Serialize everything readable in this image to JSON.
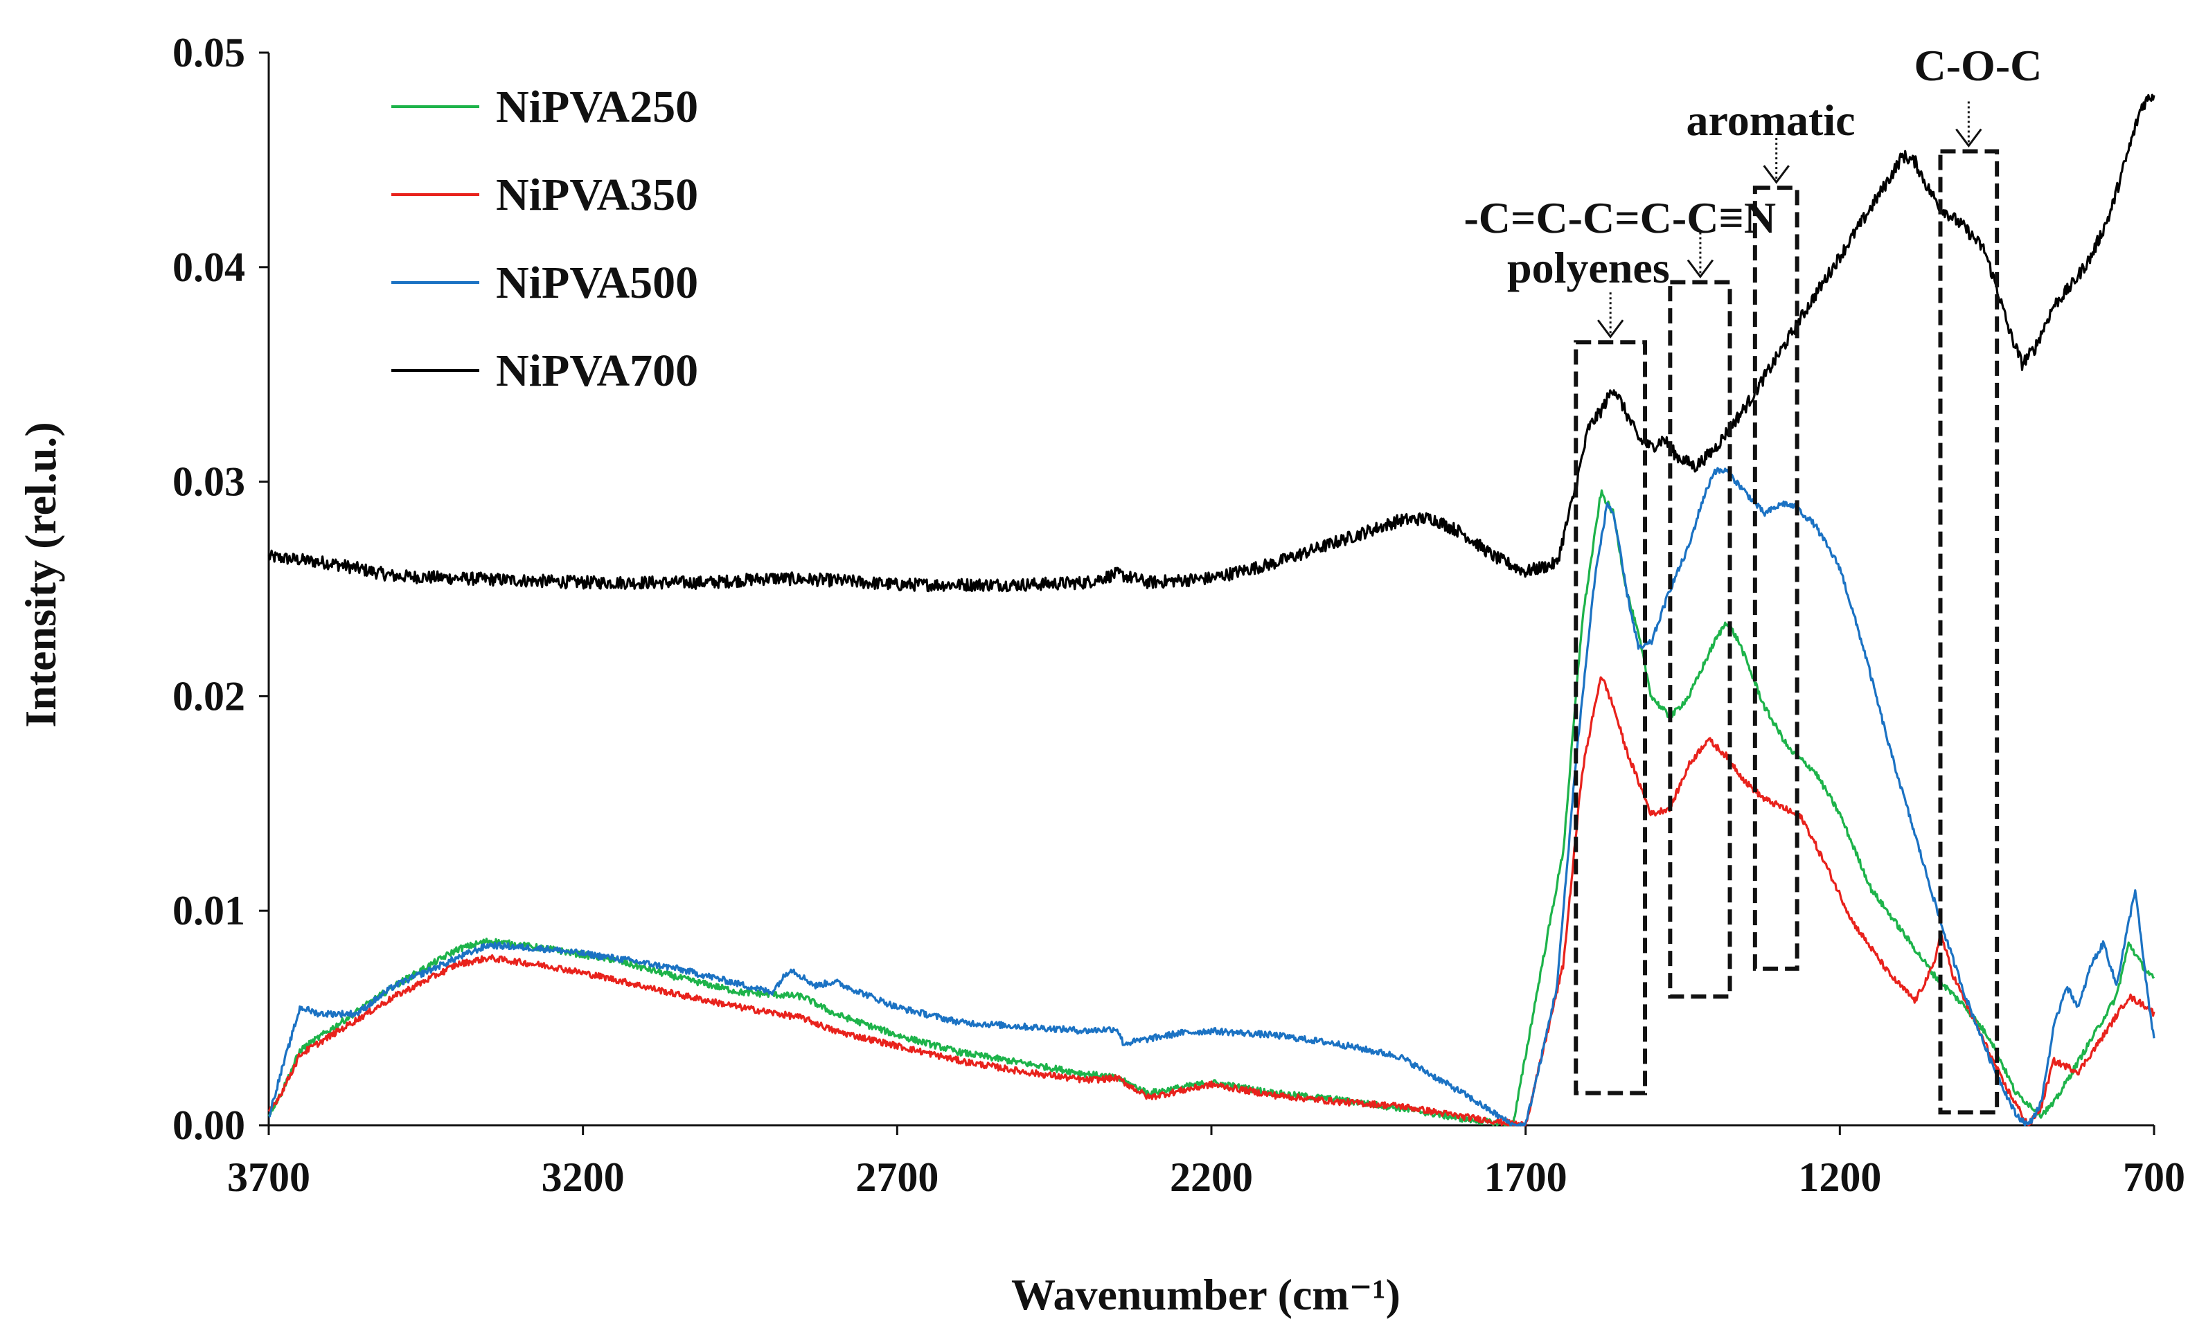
{
  "chart_data": {
    "type": "line",
    "title": "",
    "xlabel": "Wavenumber (cm⁻¹)",
    "ylabel": "Intensity (rel.u.)",
    "xlim": [
      3700,
      700
    ],
    "ylim": [
      0,
      0.05
    ],
    "x_ticks": [
      "3700",
      "3200",
      "2700",
      "2200",
      "1700",
      "1200",
      "700"
    ],
    "x_tick_values": [
      3700,
      3200,
      2700,
      2200,
      1700,
      1200,
      700
    ],
    "y_ticks": [
      "0.00",
      "0.01",
      "0.02",
      "0.03",
      "0.04",
      "0.05"
    ],
    "y_tick_values": [
      0,
      0.01,
      0.02,
      0.03,
      0.04,
      0.05
    ],
    "grid": false,
    "legend_position": "top-left",
    "series": [
      {
        "name": "NiPVA250",
        "color": "#1db34a",
        "noise": 0.00015,
        "points": [
          [
            3700,
            0.0005
          ],
          [
            3680,
            0.0015
          ],
          [
            3650,
            0.0035
          ],
          [
            3600,
            0.0045
          ],
          [
            3500,
            0.0065
          ],
          [
            3400,
            0.0082
          ],
          [
            3350,
            0.0086
          ],
          [
            3250,
            0.0082
          ],
          [
            3150,
            0.0077
          ],
          [
            3050,
            0.0069
          ],
          [
            2950,
            0.0062
          ],
          [
            2850,
            0.006
          ],
          [
            2800,
            0.0052
          ],
          [
            2700,
            0.0042
          ],
          [
            2600,
            0.0034
          ],
          [
            2500,
            0.0029
          ],
          [
            2400,
            0.0024
          ],
          [
            2350,
            0.0022
          ],
          [
            2300,
            0.0015
          ],
          [
            2200,
            0.002
          ],
          [
            2100,
            0.0015
          ],
          [
            2000,
            0.0012
          ],
          [
            1900,
            0.0008
          ],
          [
            1800,
            0.0003
          ],
          [
            1720,
            0.0
          ],
          [
            1680,
            0.0065
          ],
          [
            1640,
            0.0128
          ],
          [
            1610,
            0.0235
          ],
          [
            1580,
            0.0295
          ],
          [
            1560,
            0.0285
          ],
          [
            1540,
            0.025
          ],
          [
            1520,
            0.0228
          ],
          [
            1500,
            0.02
          ],
          [
            1470,
            0.019
          ],
          [
            1440,
            0.02
          ],
          [
            1400,
            0.0225
          ],
          [
            1380,
            0.0235
          ],
          [
            1360,
            0.0225
          ],
          [
            1320,
            0.0195
          ],
          [
            1280,
            0.0175
          ],
          [
            1240,
            0.0165
          ],
          [
            1200,
            0.0145
          ],
          [
            1150,
            0.011
          ],
          [
            1100,
            0.009
          ],
          [
            1050,
            0.007
          ],
          [
            1000,
            0.0055
          ],
          [
            960,
            0.004
          ],
          [
            920,
            0.0015
          ],
          [
            880,
            0.0005
          ],
          [
            860,
            0.001
          ],
          [
            820,
            0.003
          ],
          [
            780,
            0.005
          ],
          [
            760,
            0.006
          ],
          [
            740,
            0.0085
          ],
          [
            720,
            0.0075
          ],
          [
            700,
            0.0068
          ]
        ]
      },
      {
        "name": "NiPVA350",
        "color": "#e8221c",
        "noise": 0.00015,
        "points": [
          [
            3700,
            0.0006
          ],
          [
            3680,
            0.0015
          ],
          [
            3650,
            0.0033
          ],
          [
            3600,
            0.0042
          ],
          [
            3500,
            0.006
          ],
          [
            3400,
            0.0075
          ],
          [
            3350,
            0.0078
          ],
          [
            3250,
            0.0074
          ],
          [
            3150,
            0.0068
          ],
          [
            3050,
            0.0061
          ],
          [
            2950,
            0.0055
          ],
          [
            2850,
            0.005
          ],
          [
            2800,
            0.0044
          ],
          [
            2700,
            0.0037
          ],
          [
            2600,
            0.003
          ],
          [
            2500,
            0.0025
          ],
          [
            2400,
            0.0021
          ],
          [
            2350,
            0.0022
          ],
          [
            2300,
            0.0013
          ],
          [
            2200,
            0.0019
          ],
          [
            2100,
            0.0014
          ],
          [
            2000,
            0.0011
          ],
          [
            1900,
            0.0009
          ],
          [
            1800,
            0.0004
          ],
          [
            1700,
            0.0
          ],
          [
            1680,
            0.0025
          ],
          [
            1640,
            0.0075
          ],
          [
            1610,
            0.0165
          ],
          [
            1580,
            0.021
          ],
          [
            1560,
            0.0195
          ],
          [
            1540,
            0.0175
          ],
          [
            1520,
            0.016
          ],
          [
            1500,
            0.0145
          ],
          [
            1470,
            0.0148
          ],
          [
            1440,
            0.0168
          ],
          [
            1410,
            0.018
          ],
          [
            1380,
            0.0172
          ],
          [
            1350,
            0.016
          ],
          [
            1320,
            0.0152
          ],
          [
            1290,
            0.0148
          ],
          [
            1260,
            0.0143
          ],
          [
            1220,
            0.012
          ],
          [
            1180,
            0.0095
          ],
          [
            1120,
            0.007
          ],
          [
            1080,
            0.0058
          ],
          [
            1050,
            0.0075
          ],
          [
            1040,
            0.009
          ],
          [
            1020,
            0.007
          ],
          [
            980,
            0.0045
          ],
          [
            940,
            0.002
          ],
          [
            900,
            0.0
          ],
          [
            880,
            0.0008
          ],
          [
            860,
            0.003
          ],
          [
            820,
            0.0025
          ],
          [
            780,
            0.0042
          ],
          [
            740,
            0.006
          ],
          [
            710,
            0.0055
          ],
          [
            700,
            0.0052
          ]
        ]
      },
      {
        "name": "NiPVA500",
        "color": "#1b72c3",
        "noise": 0.00015,
        "points": [
          [
            3700,
            0.0004
          ],
          [
            3680,
            0.0025
          ],
          [
            3650,
            0.0055
          ],
          [
            3620,
            0.0052
          ],
          [
            3560,
            0.0052
          ],
          [
            3500,
            0.0065
          ],
          [
            3400,
            0.0078
          ],
          [
            3350,
            0.0084
          ],
          [
            3250,
            0.0082
          ],
          [
            3150,
            0.0078
          ],
          [
            3050,
            0.0073
          ],
          [
            2980,
            0.0068
          ],
          [
            2900,
            0.0062
          ],
          [
            2870,
            0.0073
          ],
          [
            2830,
            0.0065
          ],
          [
            2800,
            0.0067
          ],
          [
            2700,
            0.0055
          ],
          [
            2600,
            0.0048
          ],
          [
            2500,
            0.0046
          ],
          [
            2400,
            0.0044
          ],
          [
            2350,
            0.0045
          ],
          [
            2340,
            0.0038
          ],
          [
            2250,
            0.0043
          ],
          [
            2200,
            0.0044
          ],
          [
            2100,
            0.0042
          ],
          [
            2000,
            0.0038
          ],
          [
            1900,
            0.0032
          ],
          [
            1800,
            0.0015
          ],
          [
            1720,
            0.0
          ],
          [
            1700,
            0.0
          ],
          [
            1680,
            0.0025
          ],
          [
            1650,
            0.0065
          ],
          [
            1620,
            0.017
          ],
          [
            1590,
            0.0255
          ],
          [
            1570,
            0.029
          ],
          [
            1560,
            0.0285
          ],
          [
            1540,
            0.025
          ],
          [
            1520,
            0.0222
          ],
          [
            1500,
            0.0225
          ],
          [
            1470,
            0.025
          ],
          [
            1440,
            0.027
          ],
          [
            1420,
            0.029
          ],
          [
            1400,
            0.0305
          ],
          [
            1380,
            0.0305
          ],
          [
            1350,
            0.0295
          ],
          [
            1320,
            0.0285
          ],
          [
            1290,
            0.029
          ],
          [
            1270,
            0.0288
          ],
          [
            1240,
            0.028
          ],
          [
            1200,
            0.026
          ],
          [
            1160,
            0.022
          ],
          [
            1120,
            0.0175
          ],
          [
            1080,
            0.0135
          ],
          [
            1040,
            0.0095
          ],
          [
            1000,
            0.006
          ],
          [
            960,
            0.003
          ],
          [
            920,
            0.0005
          ],
          [
            900,
            0.0
          ],
          [
            880,
            0.001
          ],
          [
            860,
            0.0045
          ],
          [
            840,
            0.0065
          ],
          [
            820,
            0.0055
          ],
          [
            800,
            0.0075
          ],
          [
            780,
            0.0085
          ],
          [
            760,
            0.0065
          ],
          [
            740,
            0.0095
          ],
          [
            730,
            0.011
          ],
          [
            710,
            0.006
          ],
          [
            700,
            0.004
          ]
        ]
      },
      {
        "name": "NiPVA700",
        "color": "#000000",
        "noise": 0.0003,
        "points": [
          [
            3700,
            0.0265
          ],
          [
            3600,
            0.0262
          ],
          [
            3500,
            0.0256
          ],
          [
            3400,
            0.0255
          ],
          [
            3300,
            0.0254
          ],
          [
            3200,
            0.0253
          ],
          [
            3100,
            0.0253
          ],
          [
            3000,
            0.0253
          ],
          [
            2900,
            0.0255
          ],
          [
            2800,
            0.0254
          ],
          [
            2700,
            0.0252
          ],
          [
            2600,
            0.0252
          ],
          [
            2500,
            0.0252
          ],
          [
            2400,
            0.0253
          ],
          [
            2350,
            0.0257
          ],
          [
            2300,
            0.0253
          ],
          [
            2200,
            0.0255
          ],
          [
            2100,
            0.0262
          ],
          [
            2000,
            0.0272
          ],
          [
            1900,
            0.0282
          ],
          [
            1850,
            0.0283
          ],
          [
            1800,
            0.0276
          ],
          [
            1750,
            0.0265
          ],
          [
            1700,
            0.0258
          ],
          [
            1650,
            0.0262
          ],
          [
            1620,
            0.0298
          ],
          [
            1600,
            0.0325
          ],
          [
            1580,
            0.0333
          ],
          [
            1560,
            0.0344
          ],
          [
            1540,
            0.0332
          ],
          [
            1520,
            0.032
          ],
          [
            1500,
            0.0316
          ],
          [
            1480,
            0.032
          ],
          [
            1460,
            0.0312
          ],
          [
            1430,
            0.0307
          ],
          [
            1400,
            0.0315
          ],
          [
            1350,
            0.0335
          ],
          [
            1300,
            0.0358
          ],
          [
            1250,
            0.0382
          ],
          [
            1200,
            0.0405
          ],
          [
            1150,
            0.0428
          ],
          [
            1120,
            0.0442
          ],
          [
            1100,
            0.0452
          ],
          [
            1080,
            0.0449
          ],
          [
            1060,
            0.0437
          ],
          [
            1040,
            0.0428
          ],
          [
            1000,
            0.0418
          ],
          [
            970,
            0.0408
          ],
          [
            950,
            0.039
          ],
          [
            930,
            0.037
          ],
          [
            910,
            0.0355
          ],
          [
            890,
            0.0362
          ],
          [
            860,
            0.0382
          ],
          [
            830,
            0.0392
          ],
          [
            800,
            0.0405
          ],
          [
            770,
            0.0425
          ],
          [
            740,
            0.0455
          ],
          [
            720,
            0.0475
          ],
          [
            705,
            0.048
          ],
          [
            700,
            0.048
          ]
        ]
      }
    ],
    "annotations": [
      {
        "name": "polyenes",
        "label": "polyenes",
        "x_range": [
          1620,
          1510
        ],
        "y_range": [
          0.0015,
          0.0365
        ],
        "arrow_x": 1565
      },
      {
        "name": "nitrile",
        "label": "-C=C-C=C-C≡N",
        "x_range": [
          1470,
          1375
        ],
        "y_range": [
          0.006,
          0.0393
        ],
        "arrow_x": 1422
      },
      {
        "name": "aromatic",
        "label": "aromatic",
        "x_range": [
          1335,
          1268
        ],
        "y_range": [
          0.0073,
          0.0437
        ],
        "arrow_x": 1301
      },
      {
        "name": "coc",
        "label": "C-O-C",
        "x_range": [
          1040,
          950
        ],
        "y_range": [
          0.0006,
          0.0454
        ],
        "arrow_x": 995
      }
    ]
  }
}
